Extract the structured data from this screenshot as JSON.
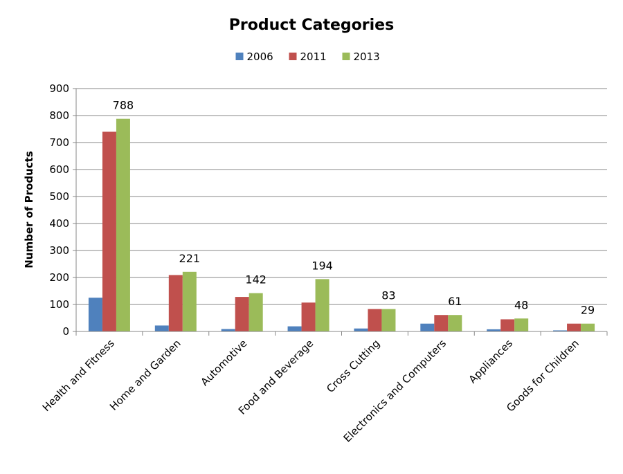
{
  "chart_data": {
    "type": "bar",
    "title": "Product Categories",
    "xlabel": "",
    "ylabel": "Number of Products",
    "ylim": [
      0,
      900
    ],
    "yticks": [
      0,
      100,
      200,
      300,
      400,
      500,
      600,
      700,
      800,
      900
    ],
    "grid": true,
    "legend_position": "top",
    "categories": [
      "Health and Fitness",
      "Home and Garden",
      "Automotive",
      "Food and Beverage",
      "Cross Cutting",
      "Electronics and Computers",
      "Appliances",
      "Goods for Children"
    ],
    "series": [
      {
        "name": "2006",
        "color": "#4F81BD",
        "values": [
          125,
          22,
          9,
          19,
          11,
          29,
          8,
          4
        ]
      },
      {
        "name": "2011",
        "color": "#C0504D",
        "values": [
          740,
          209,
          128,
          107,
          83,
          61,
          45,
          29
        ]
      },
      {
        "name": "2013",
        "color": "#9BBB59",
        "values": [
          788,
          221,
          142,
          194,
          83,
          61,
          48,
          29
        ]
      }
    ],
    "data_labels": {
      "series": "2013",
      "values": [
        "788",
        "221",
        "142",
        "194",
        "83",
        "61",
        "48",
        "29"
      ]
    }
  }
}
